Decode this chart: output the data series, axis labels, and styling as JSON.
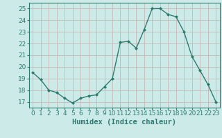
{
  "x": [
    0,
    1,
    2,
    3,
    4,
    5,
    6,
    7,
    8,
    9,
    10,
    11,
    12,
    13,
    14,
    15,
    16,
    17,
    18,
    19,
    20,
    21,
    22,
    23
  ],
  "y": [
    19.5,
    18.9,
    18.0,
    17.8,
    17.3,
    16.9,
    17.3,
    17.5,
    17.6,
    18.3,
    19.0,
    22.1,
    22.2,
    21.6,
    23.2,
    25.0,
    25.0,
    24.5,
    24.3,
    23.0,
    20.9,
    19.7,
    18.5,
    17.0
  ],
  "line_color": "#2d7b6e",
  "marker_color": "#2d7b6e",
  "bg_color": "#cceae8",
  "grid_color": "#c8b8b8",
  "xlabel": "Humidex (Indice chaleur)",
  "xlim": [
    -0.5,
    23.5
  ],
  "ylim": [
    16.5,
    25.5
  ],
  "yticks": [
    17,
    18,
    19,
    20,
    21,
    22,
    23,
    24,
    25
  ],
  "xticks": [
    0,
    1,
    2,
    3,
    4,
    5,
    6,
    7,
    8,
    9,
    10,
    11,
    12,
    13,
    14,
    15,
    16,
    17,
    18,
    19,
    20,
    21,
    22,
    23
  ],
  "xlabel_fontsize": 7.5,
  "tick_fontsize": 6.5,
  "tick_color": "#2d7b6e",
  "spine_color": "#2d7b6e"
}
